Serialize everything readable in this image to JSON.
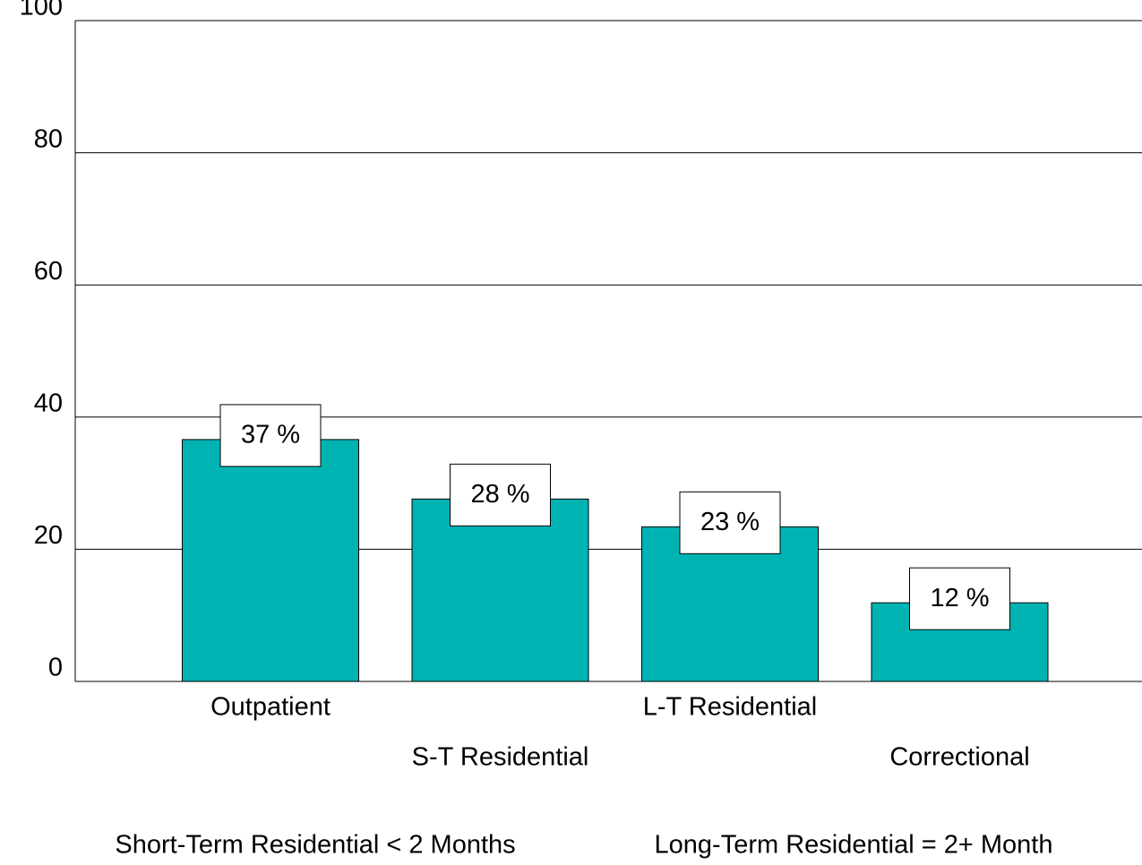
{
  "chart_data": {
    "type": "bar",
    "categories": [
      "Outpatient",
      "S-T Residential",
      "L-T Residential",
      "Correctional"
    ],
    "values": [
      36.6,
      27.6,
      23.4,
      11.9
    ],
    "value_labels": [
      "37 %",
      "28 %",
      "23 %",
      "12 %"
    ],
    "color": "#00b3b3",
    "ylim": [
      0,
      100
    ],
    "yticks": [
      0,
      20,
      40,
      60,
      80,
      100
    ],
    "grid": true,
    "annotations": [
      "Short-Term Residential < 2 Months",
      "Long-Term Residential = 2+ Month"
    ]
  }
}
